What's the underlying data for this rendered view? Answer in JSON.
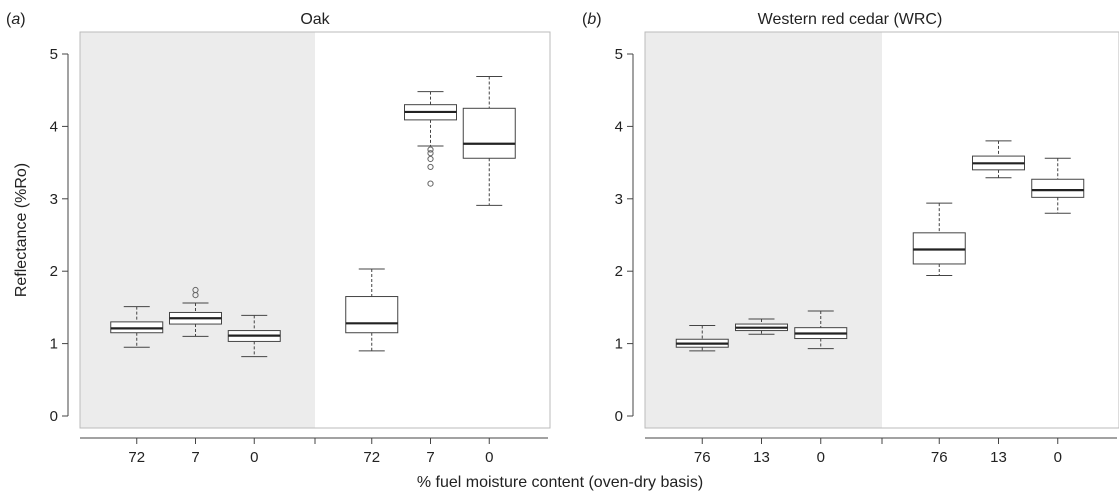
{
  "xlabel": "% fuel moisture content (oven-dry basis)",
  "chart_data": [
    {
      "type": "box",
      "panel": "(a)",
      "panel_letter": "a",
      "title": "Oak",
      "ylabel": "Reflectance (%Ro)",
      "ylim": [
        0,
        5.2
      ],
      "yticks": [
        0,
        1,
        2,
        3,
        4,
        5
      ],
      "groups": [
        {
          "shaded": true,
          "boxes": [
            {
              "label": "72",
              "min": 0.95,
              "q1": 1.15,
              "median": 1.21,
              "q3": 1.3,
              "max": 1.51,
              "outliers": []
            },
            {
              "label": "7",
              "min": 1.1,
              "q1": 1.27,
              "median": 1.35,
              "q3": 1.43,
              "max": 1.56,
              "outliers": [
                1.67,
                1.74
              ]
            },
            {
              "label": "0",
              "min": 0.82,
              "q1": 1.03,
              "median": 1.11,
              "q3": 1.18,
              "max": 1.39,
              "outliers": []
            }
          ]
        },
        {
          "shaded": false,
          "boxes": [
            {
              "label": "72",
              "min": 0.9,
              "q1": 1.15,
              "median": 1.28,
              "q3": 1.65,
              "max": 2.03,
              "outliers": []
            },
            {
              "label": "7",
              "min": 3.73,
              "q1": 4.09,
              "median": 4.2,
              "q3": 4.3,
              "max": 4.48,
              "outliers": [
                3.68,
                3.63,
                3.55,
                3.44,
                3.21
              ]
            },
            {
              "label": "0",
              "min": 2.91,
              "q1": 3.56,
              "median": 3.76,
              "q3": 4.25,
              "max": 4.69,
              "outliers": []
            }
          ]
        }
      ]
    },
    {
      "type": "box",
      "panel": "(b)",
      "panel_letter": "b",
      "title": "Western red cedar (WRC)",
      "ylabel": "",
      "ylim": [
        0,
        5.2
      ],
      "yticks": [
        0,
        1,
        2,
        3,
        4,
        5
      ],
      "groups": [
        {
          "shaded": true,
          "boxes": [
            {
              "label": "76",
              "min": 0.9,
              "q1": 0.95,
              "median": 1.0,
              "q3": 1.06,
              "max": 1.25,
              "outliers": []
            },
            {
              "label": "13",
              "min": 1.13,
              "q1": 1.18,
              "median": 1.22,
              "q3": 1.27,
              "max": 1.34,
              "outliers": []
            },
            {
              "label": "0",
              "min": 0.93,
              "q1": 1.07,
              "median": 1.14,
              "q3": 1.22,
              "max": 1.45,
              "outliers": []
            }
          ]
        },
        {
          "shaded": false,
          "boxes": [
            {
              "label": "76",
              "min": 1.94,
              "q1": 2.1,
              "median": 2.3,
              "q3": 2.53,
              "max": 2.94,
              "outliers": []
            },
            {
              "label": "13",
              "min": 3.29,
              "q1": 3.4,
              "median": 3.49,
              "q3": 3.59,
              "max": 3.8,
              "outliers": []
            },
            {
              "label": "0",
              "min": 2.8,
              "q1": 3.02,
              "median": 3.12,
              "q3": 3.27,
              "max": 3.56,
              "outliers": []
            }
          ]
        }
      ]
    }
  ]
}
